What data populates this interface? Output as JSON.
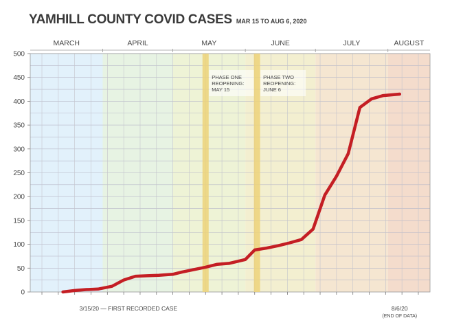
{
  "header": {
    "title": "YAMHILL COUNTY COVID CASES",
    "subtitle": "MAR 15 TO AUG 6, 2020"
  },
  "chart_data": {
    "type": "line",
    "title": "YAMHILL COUNTY COVID CASES",
    "subtitle": "MAR 15 TO AUG 6, 2020",
    "xlabel": "",
    "ylabel": "",
    "ylim": [
      0,
      500
    ],
    "yticks": [
      0,
      50,
      100,
      150,
      200,
      250,
      300,
      350,
      400,
      450,
      500
    ],
    "grid": true,
    "months": [
      "MARCH",
      "APRIL",
      "MAY",
      "JUNE",
      "JULY",
      "AUGUST"
    ],
    "month_colors": [
      "#e2f1fb",
      "#e7f3e3",
      "#eef3d6",
      "#f3efd0",
      "#f5e6d1",
      "#f4dccc"
    ],
    "line_color": "#c41e24",
    "series": [
      {
        "x": [
          "2020-03-15",
          "2020-03-20",
          "2020-03-25",
          "2020-03-30",
          "2020-04-05",
          "2020-04-10",
          "2020-04-15",
          "2020-04-20",
          "2020-04-25",
          "2020-05-01",
          "2020-05-05",
          "2020-05-10",
          "2020-05-15",
          "2020-05-20",
          "2020-05-25",
          "2020-06-01",
          "2020-06-05",
          "2020-06-10",
          "2020-06-15",
          "2020-06-20",
          "2020-06-25",
          "2020-06-30",
          "2020-07-05",
          "2020-07-10",
          "2020-07-15",
          "2020-07-20",
          "2020-07-25",
          "2020-07-30",
          "2020-08-06"
        ],
        "y": [
          0,
          3,
          5,
          6,
          12,
          25,
          33,
          34,
          35,
          37,
          42,
          47,
          52,
          58,
          60,
          68,
          88,
          92,
          97,
          103,
          110,
          132,
          203,
          243,
          290,
          387,
          405,
          412,
          415
        ]
      }
    ],
    "annotations": [
      {
        "date": "2020-05-15",
        "label": "PHASE ONE\nREOPENING:\nMAY 15"
      },
      {
        "date": "2020-06-06",
        "label": "PHASE TWO\nREOPENING:\nJUNE 6"
      }
    ],
    "bottom_labels": {
      "start": "3/15/20 — FIRST RECORDED CASE",
      "end": "8/6/20",
      "end_note": "(END OF DATA)"
    }
  }
}
